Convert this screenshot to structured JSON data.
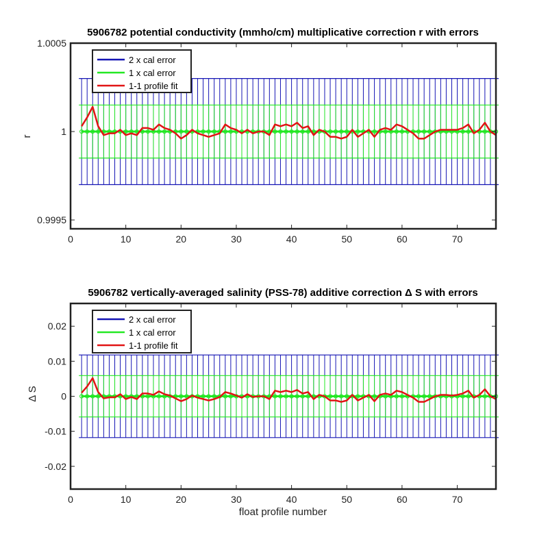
{
  "chart_data": [
    {
      "type": "line",
      "title": "5906782 potential conductivity (mmho/cm) multiplicative correction r with errors",
      "xlabel": "",
      "ylabel": "r",
      "xlim": [
        0,
        77
      ],
      "ylim": [
        0.99945,
        1.0005
      ],
      "xticks": [
        0,
        10,
        20,
        30,
        40,
        50,
        60,
        70
      ],
      "yticks": [
        0.9995,
        1,
        1.0005
      ],
      "ytick_labels": [
        "0.9995",
        "1",
        "1.0005"
      ],
      "legend": {
        "placement": "top-left",
        "entries": [
          "2 x cal error",
          "1 x cal error",
          "1-1 profile fit"
        ]
      },
      "grid": false,
      "center": 1,
      "error_2x": 0.0003,
      "error_1x": 0.00015,
      "x": [
        2,
        3,
        4,
        5,
        6,
        7,
        8,
        9,
        10,
        11,
        12,
        13,
        14,
        15,
        16,
        17,
        18,
        19,
        20,
        21,
        22,
        23,
        24,
        25,
        26,
        27,
        28,
        29,
        30,
        31,
        32,
        33,
        34,
        35,
        36,
        37,
        38,
        39,
        40,
        41,
        42,
        43,
        44,
        45,
        46,
        47,
        48,
        49,
        50,
        51,
        52,
        53,
        54,
        55,
        56,
        57,
        58,
        59,
        60,
        61,
        62,
        63,
        64,
        65,
        66,
        67,
        68,
        69,
        70,
        71,
        72,
        73,
        74,
        75,
        76,
        77
      ],
      "series": [
        {
          "name": "1-1 profile fit",
          "values": [
            1.00003,
            1.00008,
            1.00014,
            1.00003,
            0.99998,
            0.99999,
            0.99999,
            1.00001,
            0.99998,
            0.99999,
            0.99998,
            1.00002,
            1.00002,
            1.00001,
            1.00004,
            1.00002,
            1.00001,
            0.99999,
            0.99996,
            0.99998,
            1.00001,
            0.99999,
            0.99998,
            0.99997,
            0.99998,
            0.99999,
            1.00004,
            1.00002,
            1.00001,
            0.99999,
            1.00001,
            0.99999,
            1.0,
            1.0,
            0.99998,
            1.00004,
            1.00003,
            1.00004,
            1.00003,
            1.00005,
            1.00002,
            1.00003,
            0.99998,
            1.00001,
            1.0,
            0.99997,
            0.99997,
            0.99996,
            0.99997,
            1.00001,
            0.99997,
            0.99999,
            1.00001,
            0.99997,
            1.00001,
            1.00002,
            1.00001,
            1.00004,
            1.00003,
            1.00001,
            0.99999,
            0.99996,
            0.99996,
            0.99998,
            1.0,
            1.00001,
            1.00001,
            1.00001,
            1.00001,
            1.00002,
            1.00004,
            0.99999,
            1.00001,
            1.00005,
            1.0,
            0.99998
          ]
        }
      ]
    },
    {
      "type": "line",
      "title": "5906782 vertically-averaged salinity (PSS-78) additive correction Δ S with errors",
      "xlabel": "float profile number",
      "ylabel": "Δ S",
      "xlim": [
        0,
        77
      ],
      "ylim": [
        -0.0265,
        0.0265
      ],
      "xticks": [
        0,
        10,
        20,
        30,
        40,
        50,
        60,
        70
      ],
      "yticks": [
        -0.02,
        -0.01,
        0,
        0.01,
        0.02
      ],
      "ytick_labels": [
        "-0.02",
        "-0.01",
        "0",
        "0.01",
        "0.02"
      ],
      "legend": {
        "placement": "top-left",
        "entries": [
          "2 x cal error",
          "1 x cal error",
          "1-1 profile fit"
        ]
      },
      "grid": false,
      "center": 0,
      "error_2x": 0.0118,
      "error_1x": 0.0059,
      "x": [
        2,
        3,
        4,
        5,
        6,
        7,
        8,
        9,
        10,
        11,
        12,
        13,
        14,
        15,
        16,
        17,
        18,
        19,
        20,
        21,
        22,
        23,
        24,
        25,
        26,
        27,
        28,
        29,
        30,
        31,
        32,
        33,
        34,
        35,
        36,
        37,
        38,
        39,
        40,
        41,
        42,
        43,
        44,
        45,
        46,
        47,
        48,
        49,
        50,
        51,
        52,
        53,
        54,
        55,
        56,
        57,
        58,
        59,
        60,
        61,
        62,
        63,
        64,
        65,
        66,
        67,
        68,
        69,
        70,
        71,
        72,
        73,
        74,
        75,
        76,
        77
      ],
      "series": [
        {
          "name": "1-1 profile fit",
          "values": [
            0.001,
            0.0028,
            0.0052,
            0.0012,
            -0.0006,
            -0.0003,
            -0.0003,
            0.0006,
            -0.0008,
            -0.0002,
            -0.0008,
            0.0008,
            0.0008,
            0.0004,
            0.0014,
            0.0006,
            0.0002,
            -0.0006,
            -0.0014,
            -0.0008,
            0.0002,
            -0.0004,
            -0.0008,
            -0.0012,
            -0.0008,
            -0.0002,
            0.0012,
            0.0008,
            0.0002,
            -0.0004,
            0.0006,
            -0.0002,
            0.0,
            0.0,
            -0.0008,
            0.0016,
            0.0012,
            0.0016,
            0.0012,
            0.0018,
            0.0008,
            0.0012,
            -0.0008,
            0.0004,
            0.0,
            -0.0012,
            -0.0012,
            -0.0016,
            -0.0012,
            0.0004,
            -0.0012,
            -0.0004,
            0.0004,
            -0.0014,
            0.0004,
            0.0008,
            0.0004,
            0.0016,
            0.0012,
            0.0004,
            -0.0004,
            -0.0016,
            -0.0016,
            -0.0008,
            0.0,
            0.0004,
            0.0004,
            0.0002,
            0.0004,
            0.0008,
            0.0016,
            -0.0004,
            0.0004,
            0.002,
            0.0,
            -0.0008
          ]
        }
      ]
    }
  ],
  "colors": {
    "two_x": "#1414b4",
    "one_x": "#22e822",
    "fit": "#e11414",
    "axis": "#222222"
  }
}
